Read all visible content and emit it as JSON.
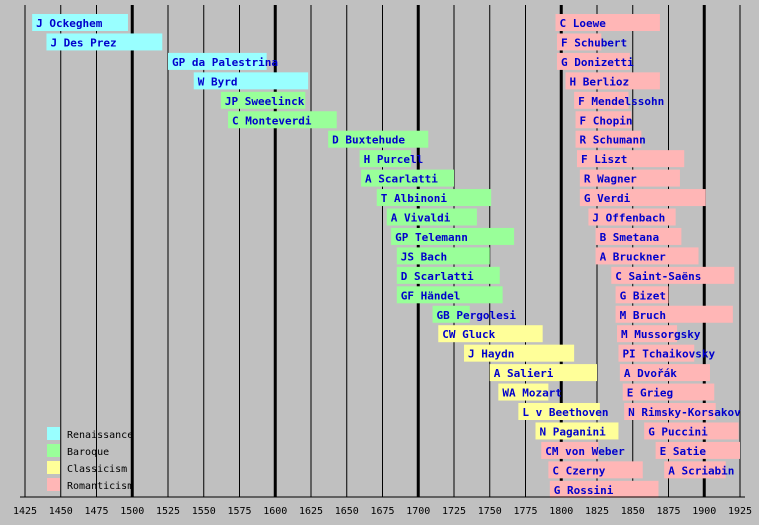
{
  "chart_data": {
    "type": "bar",
    "title": "",
    "xlabel": "",
    "ylabel": "",
    "xlim": [
      1425,
      1925
    ],
    "x_ticks": [
      1425,
      1450,
      1475,
      1500,
      1525,
      1550,
      1575,
      1600,
      1625,
      1650,
      1675,
      1700,
      1725,
      1750,
      1775,
      1800,
      1825,
      1850,
      1875,
      1900,
      1925
    ],
    "major_gridlines": [
      1500,
      1600,
      1700,
      1800,
      1900
    ],
    "grid": true,
    "legend_position": "bottom-left",
    "period_colors": {
      "Renaissance": "#99ffff",
      "Baroque": "#99ff99",
      "Classicism": "#ffff99",
      "Romanticism": "#ffb6b6"
    },
    "legend": [
      "Renaissance",
      "Baroque",
      "Classicism",
      "Romanticism"
    ],
    "columns": [
      {
        "composers": [
          {
            "name": "J Ockeghem",
            "start": 1430,
            "end": 1497,
            "period": "Renaissance"
          },
          {
            "name": "J Des Prez",
            "start": 1440,
            "end": 1521,
            "period": "Renaissance"
          },
          {
            "name": "GP da Palestrina",
            "start": 1525,
            "end": 1594,
            "period": "Renaissance"
          },
          {
            "name": "W Byrd",
            "start": 1543,
            "end": 1623,
            "period": "Renaissance"
          },
          {
            "name": "JP Sweelinck",
            "start": 1562,
            "end": 1621,
            "period": "Baroque"
          },
          {
            "name": "C Monteverdi",
            "start": 1567,
            "end": 1643,
            "period": "Baroque"
          },
          {
            "name": "D Buxtehude",
            "start": 1637,
            "end": 1707,
            "period": "Baroque"
          },
          {
            "name": "H Purcell",
            "start": 1659,
            "end": 1695,
            "period": "Baroque"
          },
          {
            "name": "A Scarlatti",
            "start": 1660,
            "end": 1725,
            "period": "Baroque"
          },
          {
            "name": "T Albinoni",
            "start": 1671,
            "end": 1751,
            "period": "Baroque"
          },
          {
            "name": "A Vivaldi",
            "start": 1678,
            "end": 1741,
            "period": "Baroque"
          },
          {
            "name": "GP Telemann",
            "start": 1681,
            "end": 1767,
            "period": "Baroque"
          },
          {
            "name": "JS Bach",
            "start": 1685,
            "end": 1750,
            "period": "Baroque"
          },
          {
            "name": "D Scarlatti",
            "start": 1685,
            "end": 1757,
            "period": "Baroque"
          },
          {
            "name": "GF Händel",
            "start": 1685,
            "end": 1759,
            "period": "Baroque"
          },
          {
            "name": "GB Pergolesi",
            "start": 1710,
            "end": 1736,
            "period": "Baroque"
          },
          {
            "name": "CW Gluck",
            "start": 1714,
            "end": 1787,
            "period": "Classicism"
          },
          {
            "name": "J Haydn",
            "start": 1732,
            "end": 1809,
            "period": "Classicism"
          },
          {
            "name": "A Salieri",
            "start": 1750,
            "end": 1825,
            "period": "Classicism"
          },
          {
            "name": "WA Mozart",
            "start": 1756,
            "end": 1791,
            "period": "Classicism"
          },
          {
            "name": "L v Beethoven",
            "start": 1770,
            "end": 1827,
            "period": "Classicism"
          },
          {
            "name": "N Paganini",
            "start": 1782,
            "end": 1840,
            "period": "Classicism"
          },
          {
            "name": "CM von Weber",
            "start": 1786,
            "end": 1826,
            "period": "Romanticism"
          },
          {
            "name": "C Czerny",
            "start": 1791,
            "end": 1857,
            "period": "Romanticism"
          },
          {
            "name": "G Rossini",
            "start": 1792,
            "end": 1868,
            "period": "Romanticism"
          }
        ]
      },
      {
        "composers": [
          {
            "name": "C Loewe",
            "start": 1796,
            "end": 1869,
            "period": "Romanticism"
          },
          {
            "name": "F Schubert",
            "start": 1797,
            "end": 1828,
            "period": "Romanticism"
          },
          {
            "name": "G Donizetti",
            "start": 1797,
            "end": 1848,
            "period": "Romanticism"
          },
          {
            "name": "H Berlioz",
            "start": 1803,
            "end": 1869,
            "period": "Romanticism"
          },
          {
            "name": "F Mendelssohn",
            "start": 1809,
            "end": 1847,
            "period": "Romanticism"
          },
          {
            "name": "F Chopin",
            "start": 1810,
            "end": 1849,
            "period": "Romanticism"
          },
          {
            "name": "R Schumann",
            "start": 1810,
            "end": 1856,
            "period": "Romanticism"
          },
          {
            "name": "F Liszt",
            "start": 1811,
            "end": 1886,
            "period": "Romanticism"
          },
          {
            "name": "R Wagner",
            "start": 1813,
            "end": 1883,
            "period": "Romanticism"
          },
          {
            "name": "G Verdi",
            "start": 1813,
            "end": 1901,
            "period": "Romanticism"
          },
          {
            "name": "J Offenbach",
            "start": 1819,
            "end": 1880,
            "period": "Romanticism"
          },
          {
            "name": "B Smetana",
            "start": 1824,
            "end": 1884,
            "period": "Romanticism"
          },
          {
            "name": "A Bruckner",
            "start": 1824,
            "end": 1896,
            "period": "Romanticism"
          },
          {
            "name": "C Saint-Saëns",
            "start": 1835,
            "end": 1921,
            "period": "Romanticism"
          },
          {
            "name": "G Bizet",
            "start": 1838,
            "end": 1875,
            "period": "Romanticism"
          },
          {
            "name": "M Bruch",
            "start": 1838,
            "end": 1920,
            "period": "Romanticism"
          },
          {
            "name": "M Mussorgsky",
            "start": 1839,
            "end": 1881,
            "period": "Romanticism"
          },
          {
            "name": "PI Tchaikovsky",
            "start": 1840,
            "end": 1893,
            "period": "Romanticism"
          },
          {
            "name": "A Dvořák",
            "start": 1841,
            "end": 1904,
            "period": "Romanticism"
          },
          {
            "name": "E Grieg",
            "start": 1843,
            "end": 1907,
            "period": "Romanticism"
          },
          {
            "name": "N Rimsky-Korsakov",
            "start": 1844,
            "end": 1908,
            "period": "Romanticism"
          },
          {
            "name": "G Puccini",
            "start": 1858,
            "end": 1924,
            "period": "Romanticism"
          },
          {
            "name": "E Satie",
            "start": 1866,
            "end": 1925,
            "period": "Romanticism"
          },
          {
            "name": "A Scriabin",
            "start": 1872,
            "end": 1915,
            "period": "Romanticism"
          }
        ]
      }
    ]
  }
}
